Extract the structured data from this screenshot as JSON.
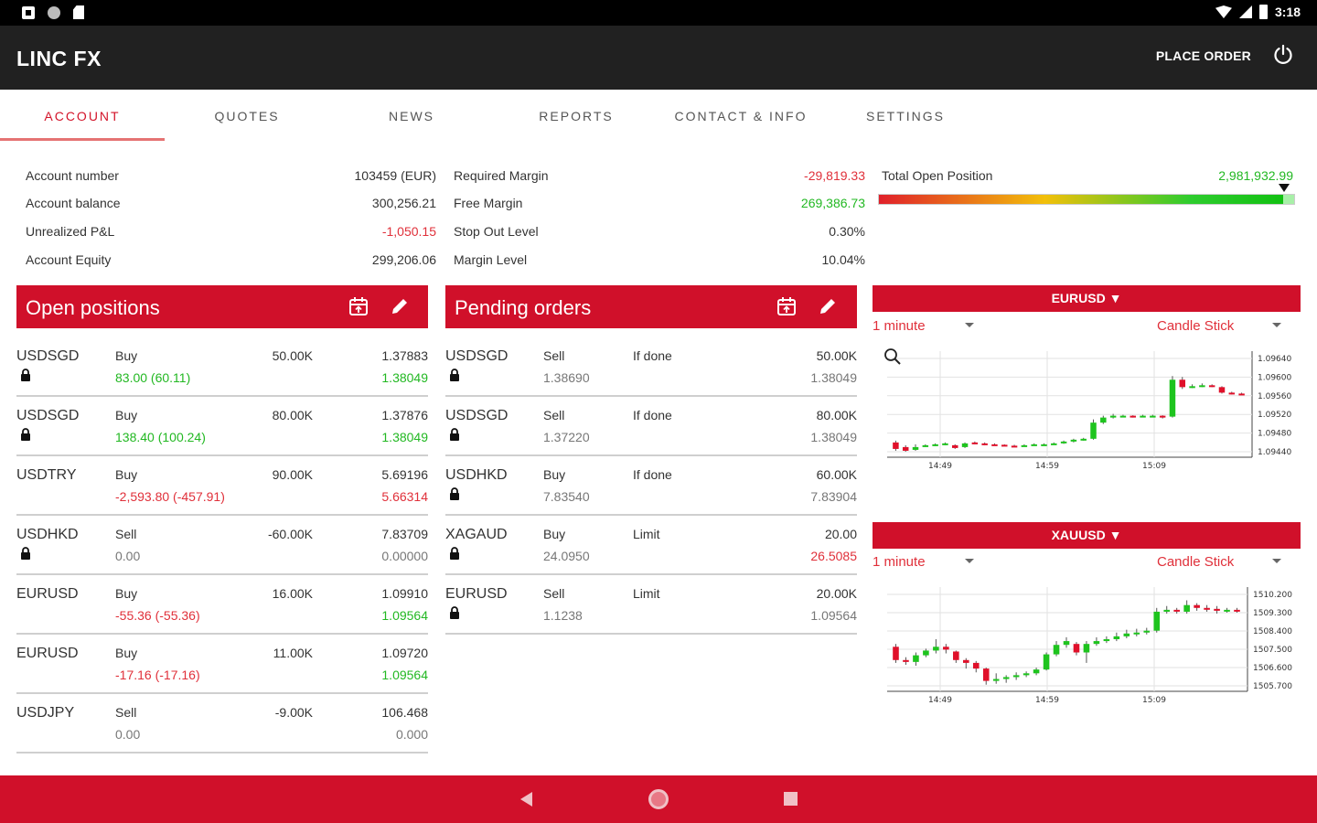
{
  "status_bar": {
    "time": "3:18"
  },
  "app": {
    "title": "LINC FX",
    "place_order_label": "PLACE ORDER"
  },
  "tabs": [
    {
      "label": "ACCOUNT",
      "active": true
    },
    {
      "label": "QUOTES",
      "active": false
    },
    {
      "label": "NEWS",
      "active": false
    },
    {
      "label": "REPORTS",
      "active": false
    },
    {
      "label": "CONTACT & INFO",
      "active": false
    },
    {
      "label": "SETTINGS",
      "active": false
    }
  ],
  "account": {
    "col1": [
      {
        "label": "Account number",
        "value": "103459 (EUR)",
        "tone": "normal"
      },
      {
        "label": "Account balance",
        "value": "300,256.21",
        "tone": "normal"
      },
      {
        "label": "Unrealized P&L",
        "value": "-1,050.15",
        "tone": "negative"
      },
      {
        "label": "Account Equity",
        "value": "299,206.06",
        "tone": "normal"
      }
    ],
    "col2": [
      {
        "label": "Required Margin",
        "value": "-29,819.33",
        "tone": "negative"
      },
      {
        "label": "Free Margin",
        "value": "269,386.73",
        "tone": "positive"
      },
      {
        "label": "Stop Out Level",
        "value": "0.30%",
        "tone": "normal"
      },
      {
        "label": "Margin Level",
        "value": "10.04%",
        "tone": "normal"
      }
    ],
    "total_open_position": {
      "label": "Total Open Position",
      "value": "2,981,932.99",
      "gauge_fraction": 0.97
    }
  },
  "open_positions": {
    "title": "Open positions",
    "rows": [
      {
        "symbol": "USDSGD",
        "locked": true,
        "side": "Buy",
        "pnl": "83.00 (60.11)",
        "pnl_tone": "positive",
        "amount": "50.00K",
        "open": "1.37883",
        "current": "1.38049",
        "current_tone": "positive"
      },
      {
        "symbol": "USDSGD",
        "locked": true,
        "side": "Buy",
        "pnl": "138.40 (100.24)",
        "pnl_tone": "positive",
        "amount": "80.00K",
        "open": "1.37876",
        "current": "1.38049",
        "current_tone": "positive"
      },
      {
        "symbol": "USDTRY",
        "locked": false,
        "side": "Buy",
        "pnl": "-2,593.80 (-457.91)",
        "pnl_tone": "negative",
        "amount": "90.00K",
        "open": "5.69196",
        "current": "5.66314",
        "current_tone": "negative"
      },
      {
        "symbol": "USDHKD",
        "locked": true,
        "side": "Sell",
        "pnl": "0.00",
        "pnl_tone": "neutral",
        "amount": "-60.00K",
        "open": "7.83709",
        "current": "0.00000",
        "current_tone": "neutral"
      },
      {
        "symbol": "EURUSD",
        "locked": false,
        "side": "Buy",
        "pnl": "-55.36 (-55.36)",
        "pnl_tone": "negative",
        "amount": "16.00K",
        "open": "1.09910",
        "current": "1.09564",
        "current_tone": "positive"
      },
      {
        "symbol": "EURUSD",
        "locked": false,
        "side": "Buy",
        "pnl": "-17.16 (-17.16)",
        "pnl_tone": "negative",
        "amount": "11.00K",
        "open": "1.09720",
        "current": "1.09564",
        "current_tone": "positive"
      },
      {
        "symbol": "USDJPY",
        "locked": false,
        "side": "Sell",
        "pnl": "0.00",
        "pnl_tone": "neutral",
        "amount": "-9.00K",
        "open": "106.468",
        "current": "0.000",
        "current_tone": "neutral"
      }
    ]
  },
  "pending_orders": {
    "title": "Pending orders",
    "rows": [
      {
        "symbol": "USDSGD",
        "locked": true,
        "side": "Sell",
        "price": "1.38690",
        "type": "If done",
        "amount": "50.00K",
        "market": "1.38049",
        "market_tone": "neutral"
      },
      {
        "symbol": "USDSGD",
        "locked": true,
        "side": "Sell",
        "price": "1.37220",
        "type": "If done",
        "amount": "80.00K",
        "market": "1.38049",
        "market_tone": "neutral"
      },
      {
        "symbol": "USDHKD",
        "locked": true,
        "side": "Buy",
        "price": "7.83540",
        "type": "If done",
        "amount": "60.00K",
        "market": "7.83904",
        "market_tone": "neutral"
      },
      {
        "symbol": "XAGAUD",
        "locked": true,
        "side": "Buy",
        "price": "24.0950",
        "type": "Limit",
        "amount": "20.00",
        "market": "26.5085",
        "market_tone": "negative"
      },
      {
        "symbol": "EURUSD",
        "locked": true,
        "side": "Sell",
        "price": "1.1238",
        "type": "Limit",
        "amount": "20.00K",
        "market": "1.09564",
        "market_tone": "neutral"
      }
    ]
  },
  "charts": [
    {
      "symbol": "EURUSD ▼",
      "interval": "1 minute",
      "style": "Candle Stick",
      "y_ticks": [
        "1.09640",
        "1.09600",
        "1.09560",
        "1.09520",
        "1.09480",
        "1.09440"
      ],
      "x_ticks": [
        "14:49",
        "14:59",
        "15:09"
      ],
      "y_range": [
        1.0943,
        1.0966
      ],
      "candles": [
        {
          "o": 1.09462,
          "c": 1.09448,
          "h": 1.09466,
          "l": 1.09444
        },
        {
          "o": 1.09452,
          "c": 1.09444,
          "h": 1.09456,
          "l": 1.09442
        },
        {
          "o": 1.09446,
          "c": 1.09452,
          "h": 1.09458,
          "l": 1.09444
        },
        {
          "o": 1.09454,
          "c": 1.09456,
          "h": 1.09458,
          "l": 1.09452
        },
        {
          "o": 1.09456,
          "c": 1.09458,
          "h": 1.0946,
          "l": 1.09454
        },
        {
          "o": 1.09458,
          "c": 1.0946,
          "h": 1.09462,
          "l": 1.09456
        },
        {
          "o": 1.09456,
          "c": 1.0945,
          "h": 1.09458,
          "l": 1.09448
        },
        {
          "o": 1.09452,
          "c": 1.0946,
          "h": 1.09462,
          "l": 1.0945
        },
        {
          "o": 1.09462,
          "c": 1.0946,
          "h": 1.09464,
          "l": 1.09458
        },
        {
          "o": 1.0946,
          "c": 1.09458,
          "h": 1.09462,
          "l": 1.09456
        },
        {
          "o": 1.09458,
          "c": 1.09457,
          "h": 1.0946,
          "l": 1.09455
        },
        {
          "o": 1.09457,
          "c": 1.09456,
          "h": 1.09458,
          "l": 1.09454
        },
        {
          "o": 1.09455,
          "c": 1.09454,
          "h": 1.09457,
          "l": 1.09452
        },
        {
          "o": 1.09454,
          "c": 1.09456,
          "h": 1.09458,
          "l": 1.09453
        },
        {
          "o": 1.09456,
          "c": 1.09458,
          "h": 1.0946,
          "l": 1.09455
        },
        {
          "o": 1.09458,
          "c": 1.09458,
          "h": 1.0946,
          "l": 1.09456
        },
        {
          "o": 1.09458,
          "c": 1.0946,
          "h": 1.09462,
          "l": 1.09457
        },
        {
          "o": 1.0946,
          "c": 1.09464,
          "h": 1.09466,
          "l": 1.09459
        },
        {
          "o": 1.09464,
          "c": 1.09468,
          "h": 1.0947,
          "l": 1.09462
        },
        {
          "o": 1.09468,
          "c": 1.0947,
          "h": 1.09472,
          "l": 1.09466
        },
        {
          "o": 1.0947,
          "c": 1.09505,
          "h": 1.09512,
          "l": 1.09468
        },
        {
          "o": 1.09505,
          "c": 1.09516,
          "h": 1.0952,
          "l": 1.09502
        },
        {
          "o": 1.09516,
          "c": 1.0952,
          "h": 1.09524,
          "l": 1.09514
        },
        {
          "o": 1.0952,
          "c": 1.0952,
          "h": 1.09522,
          "l": 1.09518
        },
        {
          "o": 1.0952,
          "c": 1.09518,
          "h": 1.09521,
          "l": 1.09516
        },
        {
          "o": 1.09518,
          "c": 1.0952,
          "h": 1.09522,
          "l": 1.09517
        },
        {
          "o": 1.0952,
          "c": 1.0952,
          "h": 1.09522,
          "l": 1.09518
        },
        {
          "o": 1.0952,
          "c": 1.09516,
          "h": 1.09521,
          "l": 1.09514
        },
        {
          "o": 1.09518,
          "c": 1.09598,
          "h": 1.09606,
          "l": 1.09516
        },
        {
          "o": 1.09598,
          "c": 1.09582,
          "h": 1.09604,
          "l": 1.09578
        },
        {
          "o": 1.09582,
          "c": 1.09584,
          "h": 1.09588,
          "l": 1.0958
        },
        {
          "o": 1.09584,
          "c": 1.09586,
          "h": 1.0959,
          "l": 1.09582
        },
        {
          "o": 1.09586,
          "c": 1.09584,
          "h": 1.09588,
          "l": 1.09582
        },
        {
          "o": 1.09582,
          "c": 1.0957,
          "h": 1.09584,
          "l": 1.09568
        },
        {
          "o": 1.0957,
          "c": 1.09568,
          "h": 1.09572,
          "l": 1.09566
        },
        {
          "o": 1.09568,
          "c": 1.09567,
          "h": 1.0957,
          "l": 1.09565
        }
      ]
    },
    {
      "symbol": "XAUUSD ▼",
      "interval": "1 minute",
      "style": "Candle Stick",
      "y_ticks": [
        "1510.200",
        "1509.300",
        "1508.400",
        "1507.500",
        "1506.600",
        "1505.700"
      ],
      "x_ticks": [
        "14:49",
        "14:59",
        "15:09"
      ],
      "y_range": [
        1505.2,
        1510.7
      ],
      "candles": [
        {
          "o": 1507.55,
          "c": 1506.85,
          "h": 1507.7,
          "l": 1506.7
        },
        {
          "o": 1506.85,
          "c": 1506.75,
          "h": 1507.0,
          "l": 1506.6
        },
        {
          "o": 1506.75,
          "c": 1507.1,
          "h": 1507.25,
          "l": 1506.55
        },
        {
          "o": 1507.1,
          "c": 1507.35,
          "h": 1507.45,
          "l": 1507.0
        },
        {
          "o": 1507.35,
          "c": 1507.55,
          "h": 1507.95,
          "l": 1507.2
        },
        {
          "o": 1507.55,
          "c": 1507.4,
          "h": 1507.7,
          "l": 1507.2
        },
        {
          "o": 1507.3,
          "c": 1506.85,
          "h": 1507.35,
          "l": 1506.7
        },
        {
          "o": 1506.85,
          "c": 1506.7,
          "h": 1506.95,
          "l": 1506.4
        },
        {
          "o": 1506.7,
          "c": 1506.4,
          "h": 1506.8,
          "l": 1506.2
        },
        {
          "o": 1506.4,
          "c": 1505.75,
          "h": 1506.45,
          "l": 1505.55
        },
        {
          "o": 1505.75,
          "c": 1505.85,
          "h": 1506.15,
          "l": 1505.6
        },
        {
          "o": 1505.85,
          "c": 1505.95,
          "h": 1506.05,
          "l": 1505.65
        },
        {
          "o": 1505.95,
          "c": 1506.05,
          "h": 1506.2,
          "l": 1505.8
        },
        {
          "o": 1506.05,
          "c": 1506.15,
          "h": 1506.25,
          "l": 1505.95
        },
        {
          "o": 1506.15,
          "c": 1506.35,
          "h": 1506.45,
          "l": 1506.05
        },
        {
          "o": 1506.35,
          "c": 1507.15,
          "h": 1507.25,
          "l": 1506.3
        },
        {
          "o": 1507.15,
          "c": 1507.65,
          "h": 1507.85,
          "l": 1507.05
        },
        {
          "o": 1507.65,
          "c": 1507.85,
          "h": 1508.05,
          "l": 1507.5
        },
        {
          "o": 1507.7,
          "c": 1507.25,
          "h": 1507.8,
          "l": 1507.1
        },
        {
          "o": 1507.25,
          "c": 1507.7,
          "h": 1507.85,
          "l": 1506.7
        },
        {
          "o": 1507.7,
          "c": 1507.85,
          "h": 1508.05,
          "l": 1507.6
        },
        {
          "o": 1507.85,
          "c": 1507.95,
          "h": 1508.1,
          "l": 1507.75
        },
        {
          "o": 1507.95,
          "c": 1508.1,
          "h": 1508.3,
          "l": 1507.85
        },
        {
          "o": 1508.1,
          "c": 1508.25,
          "h": 1508.45,
          "l": 1508.0
        },
        {
          "o": 1508.25,
          "c": 1508.3,
          "h": 1508.5,
          "l": 1508.1
        },
        {
          "o": 1508.3,
          "c": 1508.4,
          "h": 1508.55,
          "l": 1508.2
        },
        {
          "o": 1508.4,
          "c": 1509.4,
          "h": 1509.6,
          "l": 1508.3
        },
        {
          "o": 1509.4,
          "c": 1509.5,
          "h": 1509.7,
          "l": 1509.3
        },
        {
          "o": 1509.5,
          "c": 1509.45,
          "h": 1509.6,
          "l": 1509.3
        },
        {
          "o": 1509.4,
          "c": 1509.75,
          "h": 1510.0,
          "l": 1509.3
        },
        {
          "o": 1509.75,
          "c": 1509.6,
          "h": 1509.85,
          "l": 1509.45
        },
        {
          "o": 1509.6,
          "c": 1509.55,
          "h": 1509.75,
          "l": 1509.4
        },
        {
          "o": 1509.55,
          "c": 1509.45,
          "h": 1509.7,
          "l": 1509.3
        },
        {
          "o": 1509.45,
          "c": 1509.5,
          "h": 1509.6,
          "l": 1509.35
        },
        {
          "o": 1509.5,
          "c": 1509.45,
          "h": 1509.6,
          "l": 1509.35
        }
      ]
    }
  ],
  "colors": {
    "brand_red": "#d0102a",
    "positive": "#22b822",
    "negative": "#e0303a",
    "appbar": "#212121",
    "bull_candle": "#1ec41e",
    "bear_candle": "#e0102a"
  }
}
